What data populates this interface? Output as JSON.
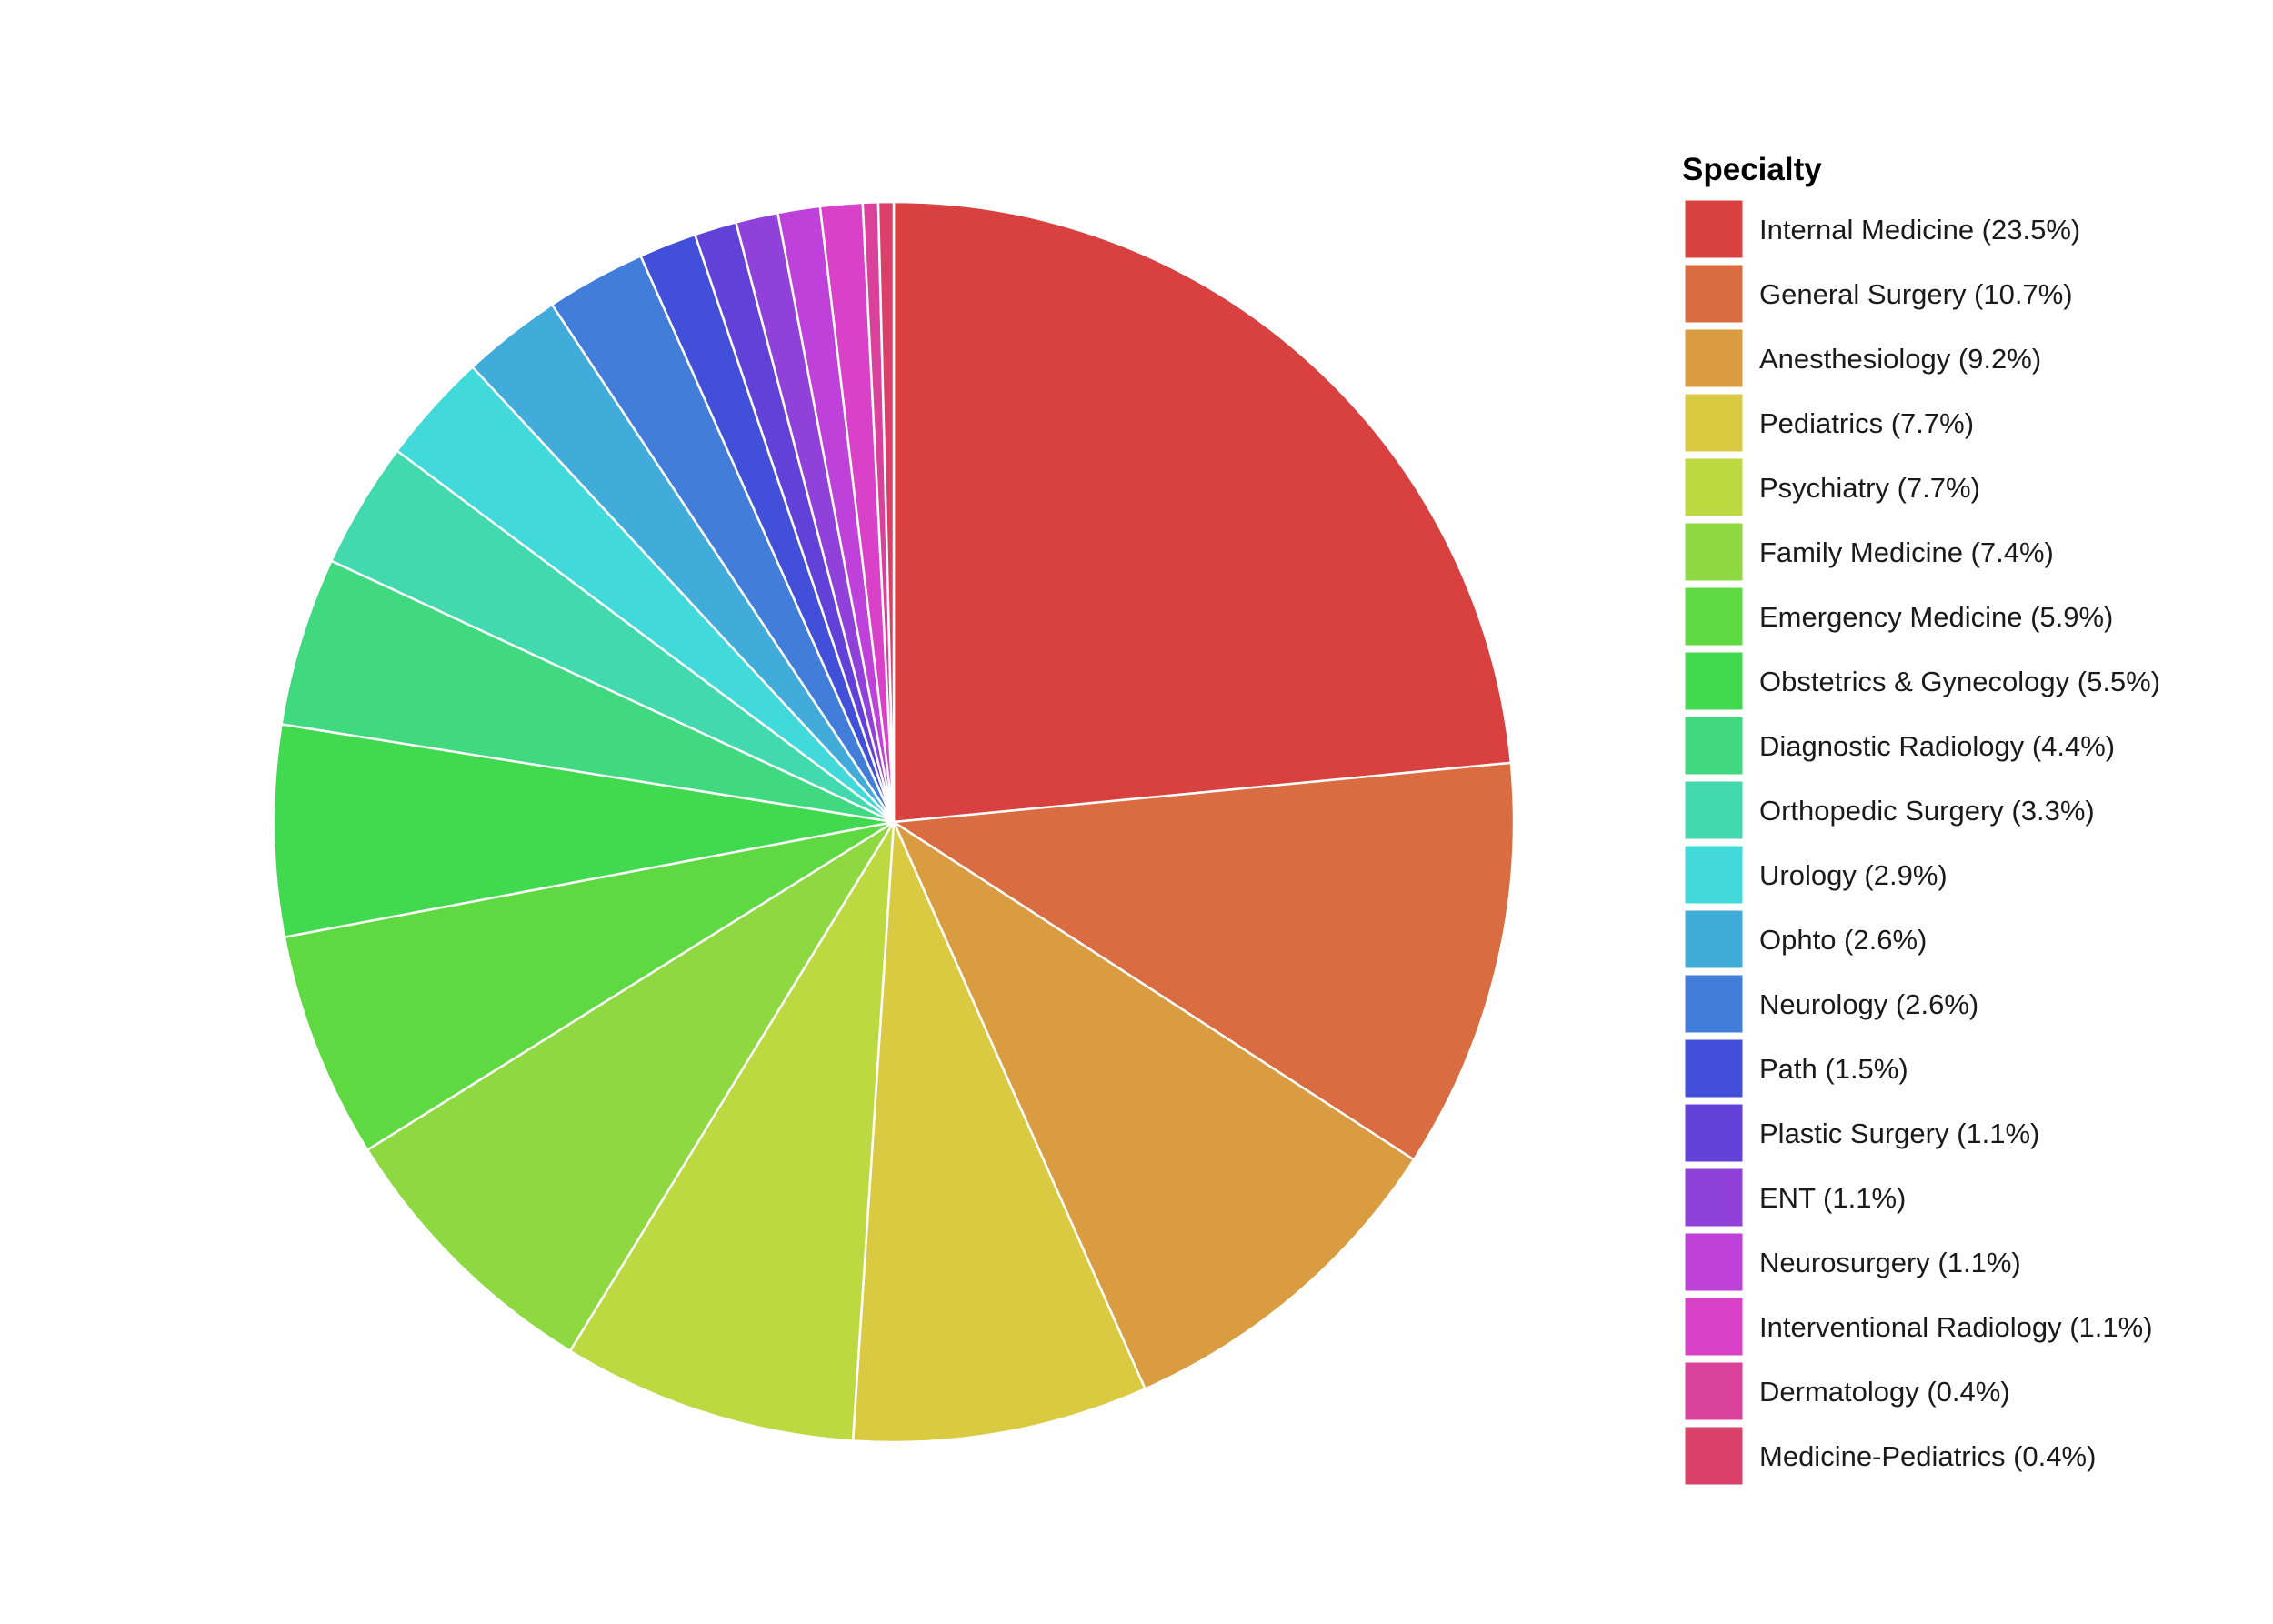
{
  "chart_data": {
    "type": "pie",
    "title": "",
    "legend": {
      "title": "Specialty",
      "position": "right"
    },
    "slices": [
      {
        "label": "Internal Medicine (23.5%)",
        "name": "Internal Medicine",
        "value": 23.5,
        "color": "#D94141"
      },
      {
        "label": "General Surgery (10.7%)",
        "name": "General Surgery",
        "value": 10.7,
        "color": "#D96D41"
      },
      {
        "label": "Anesthesiology (9.2%)",
        "name": "Anesthesiology",
        "value": 9.2,
        "color": "#D99C41"
      },
      {
        "label": "Pediatrics (7.7%)",
        "name": "Pediatrics",
        "value": 7.7,
        "color": "#D9CA41"
      },
      {
        "label": "Psychiatry (7.7%)",
        "name": "Psychiatry",
        "value": 7.7,
        "color": "#BCD941"
      },
      {
        "label": "Family Medicine (7.4%)",
        "name": "Family Medicine",
        "value": 7.4,
        "color": "#8ED941"
      },
      {
        "label": "Emergency Medicine (5.9%)",
        "name": "Emergency Medicine",
        "value": 5.9,
        "color": "#5FD941"
      },
      {
        "label": "Obstetrics & Gynecology (5.5%)",
        "name": "Obstetrics & Gynecology",
        "value": 5.5,
        "color": "#41D950"
      },
      {
        "label": "Diagnostic Radiology (4.4%)",
        "name": "Diagnostic Radiology",
        "value": 4.4,
        "color": "#41D97F"
      },
      {
        "label": "Orthopedic Surgery (3.3%)",
        "name": "Orthopedic Surgery",
        "value": 3.3,
        "color": "#41D9AD"
      },
      {
        "label": "Urology (2.9%)",
        "name": "Urology",
        "value": 2.9,
        "color": "#41D9D9"
      },
      {
        "label": "Ophto (2.6%)",
        "name": "Ophto",
        "value": 2.6,
        "color": "#41ABD9"
      },
      {
        "label": "Neurology (2.6%)",
        "name": "Neurology",
        "value": 2.6,
        "color": "#417DD9"
      },
      {
        "label": "Path (1.5%)",
        "name": "Path",
        "value": 1.5,
        "color": "#414FD9"
      },
      {
        "label": "Plastic Surgery (1.1%)",
        "name": "Plastic Surgery",
        "value": 1.1,
        "color": "#6241D9"
      },
      {
        "label": "ENT (1.1%)",
        "name": "ENT",
        "value": 1.1,
        "color": "#9041D9"
      },
      {
        "label": "Neurosurgery (1.1%)",
        "name": "Neurosurgery",
        "value": 1.1,
        "color": "#BE41D9"
      },
      {
        "label": "Interventional Radiology (1.1%)",
        "name": "Interventional Radiology",
        "value": 1.1,
        "color": "#D941C8"
      },
      {
        "label": "Dermatology (0.4%)",
        "name": "Dermatology",
        "value": 0.4,
        "color": "#D9419A"
      },
      {
        "label": "Medicine-Pediatrics (0.4%)",
        "name": "Medicine-Pediatrics",
        "value": 0.4,
        "color": "#D9416B"
      }
    ]
  }
}
